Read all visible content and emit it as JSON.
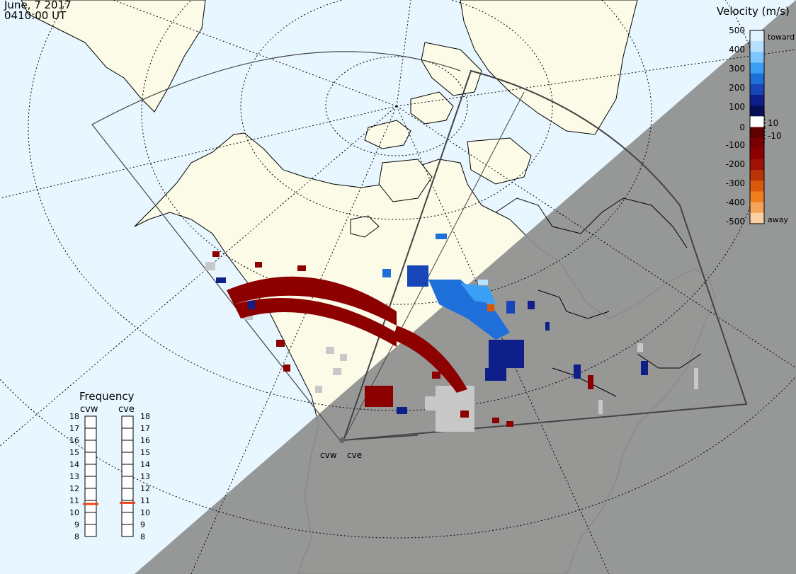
{
  "header": {
    "date": "June, 7 2017",
    "time": "0410:00 UT"
  },
  "velocity_scale": {
    "title": "Velocity (m/s)",
    "ticks": [
      "500",
      "400",
      "300",
      "200",
      "100",
      "10",
      "0",
      "-10",
      "-100",
      "-200",
      "-300",
      "-400",
      "-500"
    ],
    "toward_label": "toward",
    "away_label": "away",
    "colors": [
      "#dff2ff",
      "#b6e0ff",
      "#7ec6ff",
      "#3aa0f5",
      "#1e6fd9",
      "#1846b8",
      "#0f1f8a",
      "#080e55",
      "#ffffff",
      "#5e0000",
      "#7a0000",
      "#8c0000",
      "#a01206",
      "#b83308",
      "#d9580a",
      "#f07e1c",
      "#f7a45a",
      "#fbd0a5"
    ]
  },
  "frequency": {
    "title": "Frequency",
    "radars": [
      "cvw",
      "cve"
    ],
    "ticks": [
      "18",
      "17",
      "16",
      "15",
      "14",
      "13",
      "12",
      "11",
      "10",
      "9",
      "8"
    ],
    "current_mhz": [
      10.7,
      10.8
    ],
    "marker_color": "#e8451a"
  },
  "radar_labels": [
    "cvw",
    "cve"
  ],
  "colors": {
    "ocean": "#e8f6ff",
    "land_day": "#fbfbe8",
    "night": "#8e8e8e",
    "ground_scatter": "#c8c8c8"
  }
}
